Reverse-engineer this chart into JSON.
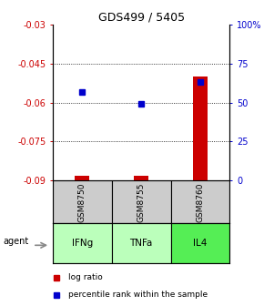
{
  "title": "GDS499 / 5405",
  "samples": [
    "GSM8750",
    "GSM8755",
    "GSM8760"
  ],
  "agents": [
    "IFNg",
    "TNFa",
    "IL4"
  ],
  "agent_colors": [
    "#bbffbb",
    "#bbffbb",
    "#55ee55"
  ],
  "log_ratios": [
    -0.088,
    -0.088,
    -0.05
  ],
  "percentile_ranks": [
    57,
    49,
    63
  ],
  "ylim_left": [
    -0.09,
    -0.03
  ],
  "ylim_right": [
    0,
    100
  ],
  "yticks_left": [
    -0.09,
    -0.075,
    -0.06,
    -0.045,
    -0.03
  ],
  "yticks_right": [
    0,
    25,
    50,
    75,
    100
  ],
  "ytick_labels_left": [
    "-0.09",
    "-0.075",
    "-0.06",
    "-0.045",
    "-0.03"
  ],
  "ytick_labels_right": [
    "0",
    "25",
    "50",
    "75",
    "100%"
  ],
  "gridlines": [
    -0.045,
    -0.06,
    -0.075
  ],
  "bar_color": "#cc0000",
  "dot_color": "#0000cc",
  "sample_box_color": "#cccccc",
  "left_color": "#cc0000",
  "right_color": "#0000cc",
  "x_positions": [
    0,
    1,
    2
  ]
}
